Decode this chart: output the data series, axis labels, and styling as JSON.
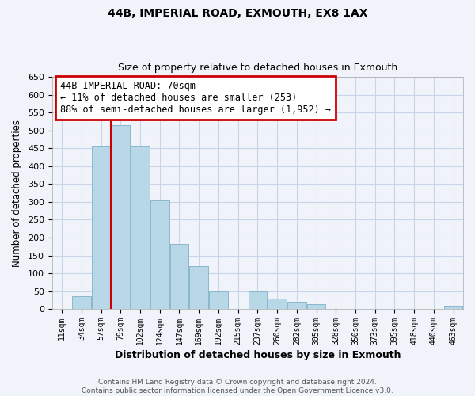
{
  "title": "44B, IMPERIAL ROAD, EXMOUTH, EX8 1AX",
  "subtitle": "Size of property relative to detached houses in Exmouth",
  "xlabel": "Distribution of detached houses by size in Exmouth",
  "ylabel": "Number of detached properties",
  "categories": [
    "11sqm",
    "34sqm",
    "57sqm",
    "79sqm",
    "102sqm",
    "124sqm",
    "147sqm",
    "169sqm",
    "192sqm",
    "215sqm",
    "237sqm",
    "260sqm",
    "282sqm",
    "305sqm",
    "328sqm",
    "350sqm",
    "373sqm",
    "395sqm",
    "418sqm",
    "440sqm",
    "463sqm"
  ],
  "values": [
    0,
    35,
    458,
    515,
    458,
    305,
    183,
    120,
    50,
    0,
    50,
    28,
    20,
    13,
    0,
    0,
    0,
    0,
    0,
    0,
    8
  ],
  "bar_color": "#b8d8e8",
  "bar_edge_color": "#8ab8cc",
  "vline_color": "#cc0000",
  "annotation_title": "44B IMPERIAL ROAD: 70sqm",
  "annotation_line1": "← 11% of detached houses are smaller (253)",
  "annotation_line2": "88% of semi-detached houses are larger (1,952) →",
  "annotation_box_color": "white",
  "annotation_box_edge_color": "#cc0000",
  "ylim": [
    0,
    650
  ],
  "yticks": [
    0,
    50,
    100,
    150,
    200,
    250,
    300,
    350,
    400,
    450,
    500,
    550,
    600,
    650
  ],
  "footer_line1": "Contains HM Land Registry data © Crown copyright and database right 2024.",
  "footer_line2": "Contains public sector information licensed under the Open Government Licence v3.0.",
  "bg_color": "#f0f4fa",
  "plot_bg_color": "#f0f4fa",
  "grid_color": "#c8d4e8",
  "title_fontsize": 10,
  "subtitle_fontsize": 9
}
